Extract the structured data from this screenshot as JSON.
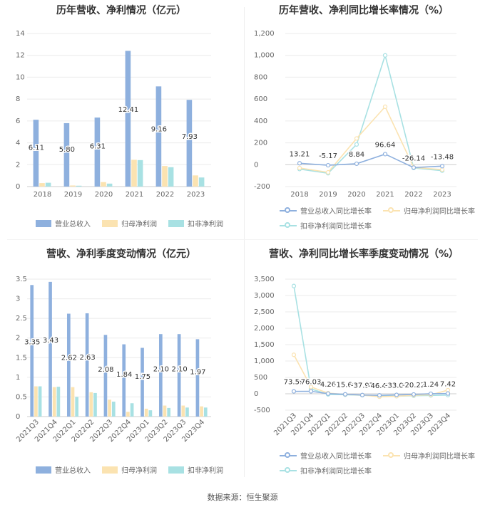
{
  "colors": {
    "revenue": "#8eb0de",
    "parent": "#fbe3b1",
    "deducted": "#a8e1e3"
  },
  "footer": {
    "source": "数据来源：恒生聚源"
  },
  "legends": {
    "bar": [
      "营业总收入",
      "归母净利润",
      "扣非净利润"
    ],
    "line": [
      "营业总收入同比增长率",
      "归母净利润同比增长率",
      "扣非净利润同比增长率"
    ]
  },
  "chart_data": [
    {
      "type": "bar",
      "title": "历年营收、净利情况（亿元）",
      "categories": [
        "2018",
        "2019",
        "2020",
        "2021",
        "2022",
        "2023"
      ],
      "ylim": [
        0,
        14
      ],
      "yticks": [
        0,
        2,
        4,
        6,
        8,
        10,
        12,
        14
      ],
      "series": [
        {
          "name": "营业总收入",
          "values": [
            6.11,
            5.8,
            6.31,
            12.41,
            9.16,
            7.93
          ],
          "labels": [
            "6.11",
            "5.80",
            "6.31",
            "12.41",
            "9.16",
            "7.93"
          ]
        },
        {
          "name": "归母净利润",
          "values": [
            0.32,
            0.1,
            0.41,
            2.45,
            1.88,
            1.02
          ]
        },
        {
          "name": "扣非净利润",
          "values": [
            0.35,
            0.08,
            0.27,
            2.42,
            1.77,
            0.83
          ]
        }
      ],
      "legend": "bottom"
    },
    {
      "type": "line",
      "title": "历年营收、净利同比增长率情况（%）",
      "categories": [
        "2018",
        "2019",
        "2020",
        "2021",
        "2022",
        "2023"
      ],
      "ylim": [
        -200,
        1200
      ],
      "yticks": [
        -200,
        0,
        200,
        400,
        600,
        800,
        1000,
        1200
      ],
      "ytick_labels": [
        "-200",
        "0",
        "200",
        "400",
        "600",
        "800",
        "1,000",
        "1,200"
      ],
      "series": [
        {
          "name": "营业总收入同比增长率",
          "values": [
            13.21,
            -5.17,
            8.84,
            96.64,
            -26.14,
            -13.48
          ],
          "labels": [
            "13.21",
            "-5.17",
            "8.84",
            "96.64",
            "-26.14",
            "-13.48"
          ]
        },
        {
          "name": "归母净利润同比增长率",
          "values": [
            -30,
            -70,
            240,
            530,
            -25,
            -45
          ]
        },
        {
          "name": "扣非净利润同比增长率",
          "values": [
            -40,
            -78,
            185,
            1000,
            -30,
            -55
          ]
        }
      ],
      "legend": "bottom"
    },
    {
      "type": "bar",
      "title": "营收、净利季度变动情况（亿元）",
      "categories": [
        "2021Q3",
        "2021Q4",
        "2022Q1",
        "2022Q2",
        "2022Q3",
        "2022Q4",
        "2023Q1",
        "2023Q2",
        "2023Q3",
        "2023Q4"
      ],
      "ylim": [
        0,
        3.5
      ],
      "yticks": [
        0,
        0.5,
        1,
        1.5,
        2,
        2.5,
        3,
        3.5
      ],
      "ytick_labels": [
        "0",
        "0.5",
        "1",
        "1.5",
        "2",
        "2.5",
        "3",
        "3.5"
      ],
      "series": [
        {
          "name": "营业总收入",
          "values": [
            3.35,
            3.43,
            2.62,
            2.63,
            2.08,
            1.84,
            1.75,
            2.1,
            2.1,
            1.97
          ],
          "labels": [
            "3.35",
            "3.43",
            "2.62",
            "2.63",
            "2.08",
            "1.84",
            "1.75",
            "2.10",
            "2.10",
            "1.97"
          ]
        },
        {
          "name": "归母净利润",
          "values": [
            0.77,
            0.75,
            0.75,
            0.62,
            0.43,
            0.12,
            0.2,
            0.28,
            0.28,
            0.26
          ]
        },
        {
          "name": "扣非净利润",
          "values": [
            0.77,
            0.76,
            0.5,
            0.6,
            0.38,
            0.34,
            0.16,
            0.22,
            0.23,
            0.23
          ]
        }
      ],
      "legend": "bottom"
    },
    {
      "type": "line",
      "title": "营收、净利同比增长率季度变动情况（%）",
      "categories": [
        "2021Q3",
        "2021Q4",
        "2022Q1",
        "2022Q2",
        "2022Q3",
        "2022Q4",
        "2023Q1",
        "2023Q2",
        "2023Q3",
        "2023Q4"
      ],
      "ylim": [
        -500,
        3500
      ],
      "yticks": [
        -500,
        0,
        500,
        1000,
        1500,
        2000,
        2500,
        3000,
        3500
      ],
      "ytick_labels": [
        "-500",
        "0",
        "500",
        "1,000",
        "1,500",
        "2,000",
        "2,500",
        "3,000",
        "3,500"
      ],
      "series": [
        {
          "name": "营业总收入同比增长率",
          "values": [
            73.59,
            76.03,
            4.26,
            -15.66,
            -37.97,
            -46.42,
            -33.02,
            -20.22,
            1.24,
            7.42
          ],
          "labels": [
            "73.59",
            "76.03",
            "4.26",
            "-15.66",
            "-37.97",
            "-46.42",
            "-33.02",
            "-20.22",
            "1.24",
            "7.42"
          ]
        },
        {
          "name": "归母净利润同比增长率",
          "values": [
            1190,
            210,
            20,
            -20,
            -40,
            -90,
            -75,
            -45,
            -30,
            110
          ]
        },
        {
          "name": "扣非净利润同比增长率",
          "values": [
            3290,
            150,
            -20,
            -30,
            -45,
            -70,
            -75,
            -60,
            -50,
            -40
          ]
        }
      ],
      "legend": "bottom"
    }
  ]
}
